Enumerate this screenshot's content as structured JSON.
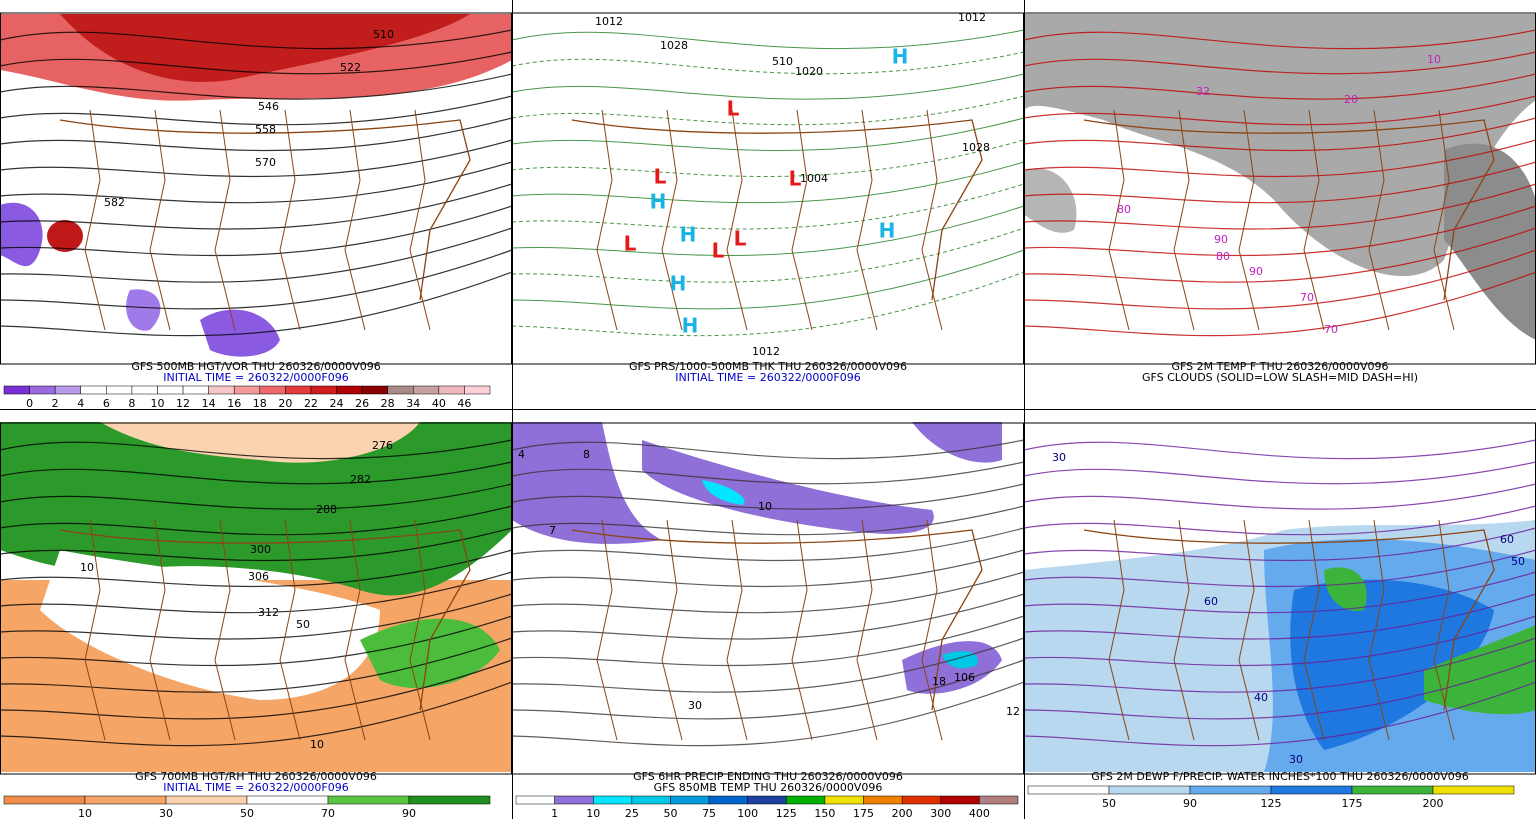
{
  "panels": [
    {
      "caption": [
        "GFS 500MB HGT/VOR THU 260326/0000V096",
        "INITIAL TIME = 260322/0000F096"
      ],
      "colorbar": {
        "colors": [
          "#7b2fd6",
          "#9a6ae0",
          "#b79be8",
          "#ffffff",
          "#ffffff",
          "#ffffff",
          "#ffffff",
          "#ffffff",
          "#f7c6c6",
          "#f49a9a",
          "#ee6a6a",
          "#e53b3b",
          "#d01c1c",
          "#b00000",
          "#8a0000",
          "#a88a8a",
          "#c9a0a0",
          "#f0b8c0",
          "#ffd0d8"
        ],
        "labels": [
          "0",
          "2",
          "4",
          "6",
          "8",
          "10",
          "12",
          "14",
          "16",
          "18",
          "20",
          "22",
          "24",
          "26",
          "28",
          "34",
          "40",
          "46"
        ]
      },
      "map_labels": [
        "510",
        "522",
        "546",
        "558",
        "570",
        "582"
      ]
    },
    {
      "caption": [
        "GFS PRS/1000-500MB THK THU 260326/0000V096",
        "INITIAL TIME = 260322/0000F096"
      ],
      "map_labels": [
        "1012",
        "1028",
        "1020",
        "1004",
        "1028",
        "1012",
        "1012",
        "510"
      ],
      "centers": [
        "H",
        "L",
        "H",
        "L",
        "H",
        "L",
        "H",
        "H",
        "H",
        "L",
        "L",
        "L"
      ]
    },
    {
      "caption": [
        "GFS 2M TEMP F THU 260326/0000V096",
        "GFS CLOUDS (SOLID=LOW SLASH=MID DASH=HI)"
      ],
      "map_labels": [
        "80",
        "90",
        "90",
        "80",
        "70",
        "32",
        "10",
        "20",
        "70"
      ]
    },
    {
      "caption": [
        "GFS 700MB HGT/RH THU 260326/0000V096",
        "INITIAL TIME = 260322/0000F096"
      ],
      "colorbar": {
        "colors": [
          "#f08c4a",
          "#f5a566",
          "#fbd3b0",
          "#ffffff",
          "#5cc443",
          "#1f8f1f"
        ],
        "labels": [
          "10",
          "30",
          "50",
          "70",
          "90"
        ]
      },
      "map_labels": [
        "276",
        "282",
        "288",
        "300",
        "306",
        "312",
        "50",
        "10",
        "10"
      ]
    },
    {
      "caption": [
        "GFS 6HR PRECIP ENDING THU 260326/0000V096",
        "GFS 850MB TEMP THU 260326/0000V096"
      ],
      "colorbar": {
        "colors": [
          "#ffffff",
          "#8f6fd8",
          "#00e6ff",
          "#00c8e6",
          "#009bd8",
          "#0066cc",
          "#2040a0",
          "#00b000",
          "#f0e000",
          "#f08000",
          "#e03000",
          "#b00000",
          "#b08080"
        ],
        "labels": [
          "1",
          "10",
          "25",
          "50",
          "75",
          "100",
          "125",
          "150",
          "175",
          "200",
          "300",
          "400"
        ]
      },
      "map_labels": [
        "8",
        "4",
        "7",
        "10",
        "18",
        "106",
        "12",
        "30"
      ]
    },
    {
      "caption": [
        "GFS 2M DEWP F/PRECIP. WATER INCHES*100 THU 260326/0000V096"
      ],
      "colorbar": {
        "colors": [
          "#ffffff",
          "#b8d8f0",
          "#66aaee",
          "#1e78e0",
          "#3cb43c",
          "#f0e000"
        ],
        "labels": [
          "50",
          "90",
          "125",
          "175",
          "200"
        ]
      },
      "map_labels": [
        "30",
        "60",
        "50",
        "60",
        "40",
        "30"
      ]
    }
  ]
}
